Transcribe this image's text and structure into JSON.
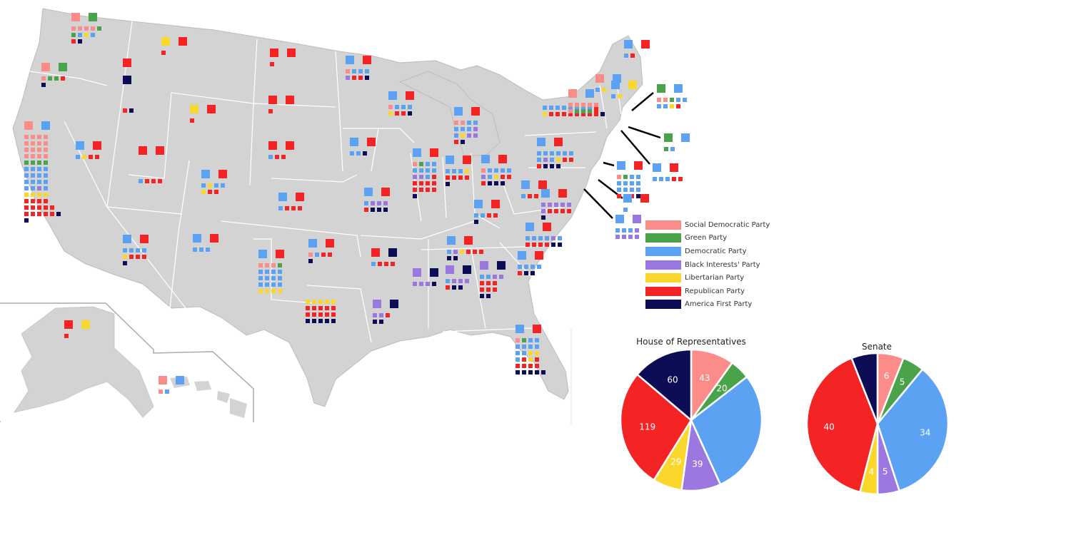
{
  "legend": {
    "items": [
      {
        "label": "Social Democratic Party",
        "color": "#fb8c8a"
      },
      {
        "label": "Green Party",
        "color": "#4aa24a"
      },
      {
        "label": "Democratic Party",
        "color": "#5ba3f2"
      },
      {
        "label": "Black Interests' Party",
        "color": "#9b78e0"
      },
      {
        "label": "Libertarian Party",
        "color": "#fad72a"
      },
      {
        "label": "Republican Party",
        "color": "#f42425"
      },
      {
        "label": "America First Party",
        "color": "#0d0d55"
      }
    ]
  },
  "map": {
    "land_color": "#d3d3d3",
    "border_color": "#ffffff"
  },
  "chart_data": [
    {
      "type": "pie",
      "title": "House of Representatives",
      "categories": [
        "Social Democratic Party",
        "Green Party",
        "Democratic Party",
        "Black Interests' Party",
        "Libertarian Party",
        "Republican Party",
        "America First Party"
      ],
      "values": [
        43,
        20,
        125,
        39,
        29,
        119,
        60
      ],
      "value_labels": [
        "43",
        "20",
        "",
        "39",
        "29",
        "119",
        "60"
      ],
      "colors": [
        "#fb8c8a",
        "#4aa24a",
        "#5ba3f2",
        "#9b78e0",
        "#fad72a",
        "#f42425",
        "#0d0d55"
      ]
    },
    {
      "type": "pie",
      "title": "Senate",
      "categories": [
        "Social Democratic Party",
        "Green Party",
        "Democratic Party",
        "Black Interests' Party",
        "Libertarian Party",
        "Republican Party",
        "America First Party"
      ],
      "values": [
        6,
        5,
        34,
        5,
        4,
        40,
        6
      ],
      "value_labels": [
        "6",
        "5",
        "34",
        "5",
        "4",
        "40",
        ""
      ],
      "colors": [
        "#fb8c8a",
        "#4aa24a",
        "#5ba3f2",
        "#9b78e0",
        "#fad72a",
        "#f42425",
        "#0d0d55"
      ]
    }
  ]
}
